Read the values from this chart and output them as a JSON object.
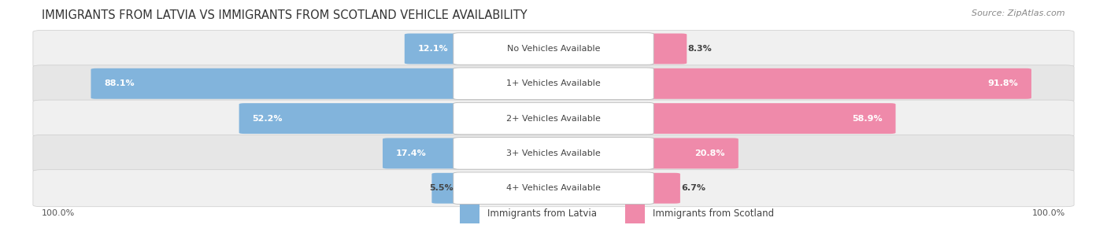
{
  "title": "IMMIGRANTS FROM LATVIA VS IMMIGRANTS FROM SCOTLAND VEHICLE AVAILABILITY",
  "source": "Source: ZipAtlas.com",
  "categories": [
    "No Vehicles Available",
    "1+ Vehicles Available",
    "2+ Vehicles Available",
    "3+ Vehicles Available",
    "4+ Vehicles Available"
  ],
  "latvia_values": [
    12.1,
    88.1,
    52.2,
    17.4,
    5.5
  ],
  "scotland_values": [
    8.3,
    91.8,
    58.9,
    20.8,
    6.7
  ],
  "latvia_color": "#82b4dc",
  "scotland_color": "#ef8aaa",
  "row_bg_even": "#f0f0f0",
  "row_bg_odd": "#e6e6e6",
  "legend_latvia": "Immigrants from Latvia",
  "legend_scotland": "Immigrants from Scotland",
  "axis_label_left": "100.0%",
  "axis_label_right": "100.0%",
  "title_fontsize": 10.5,
  "source_fontsize": 8,
  "value_fontsize": 8,
  "category_fontsize": 8,
  "legend_fontsize": 8.5
}
